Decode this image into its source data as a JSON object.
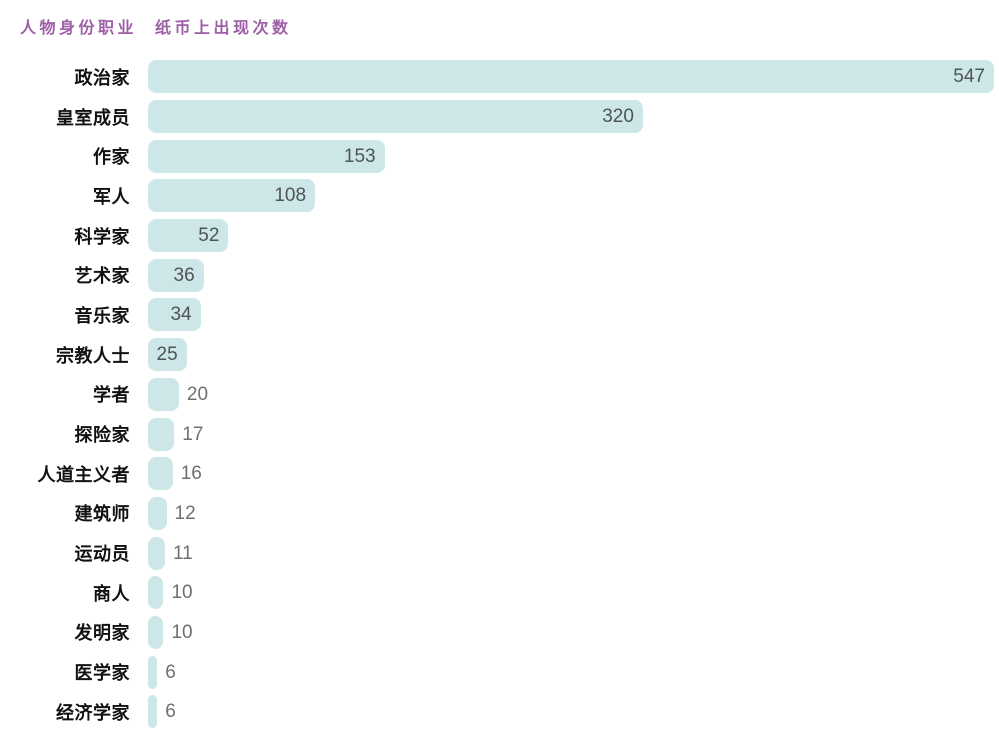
{
  "header": {
    "category_label": "人物身份职业",
    "value_label": "纸币上出现次数"
  },
  "chart_data": {
    "type": "bar",
    "orientation": "horizontal",
    "title": "",
    "categories": [
      "政治家",
      "皇室成员",
      "作家",
      "军人",
      "科学家",
      "艺术家",
      "音乐家",
      "宗教人士",
      "学者",
      "探险家",
      "人道主义者",
      "建筑师",
      "运动员",
      "商人",
      "发明家",
      "医学家",
      "经济学家"
    ],
    "values": [
      547,
      320,
      153,
      108,
      52,
      36,
      34,
      25,
      20,
      17,
      16,
      12,
      11,
      10,
      10,
      6,
      6
    ],
    "xlabel": "纸币上出现次数",
    "ylabel": "人物身份职业",
    "xlim": [
      0,
      547
    ],
    "grid": false,
    "legend": "none",
    "bar_color": "#cde7e8",
    "value_label_inside_min": 25
  },
  "colors": {
    "header_text": "#9d5fa5",
    "category_text": "#111111",
    "value_inside": "#4f5355",
    "value_outside": "#6d7073",
    "background": "#ffffff"
  }
}
